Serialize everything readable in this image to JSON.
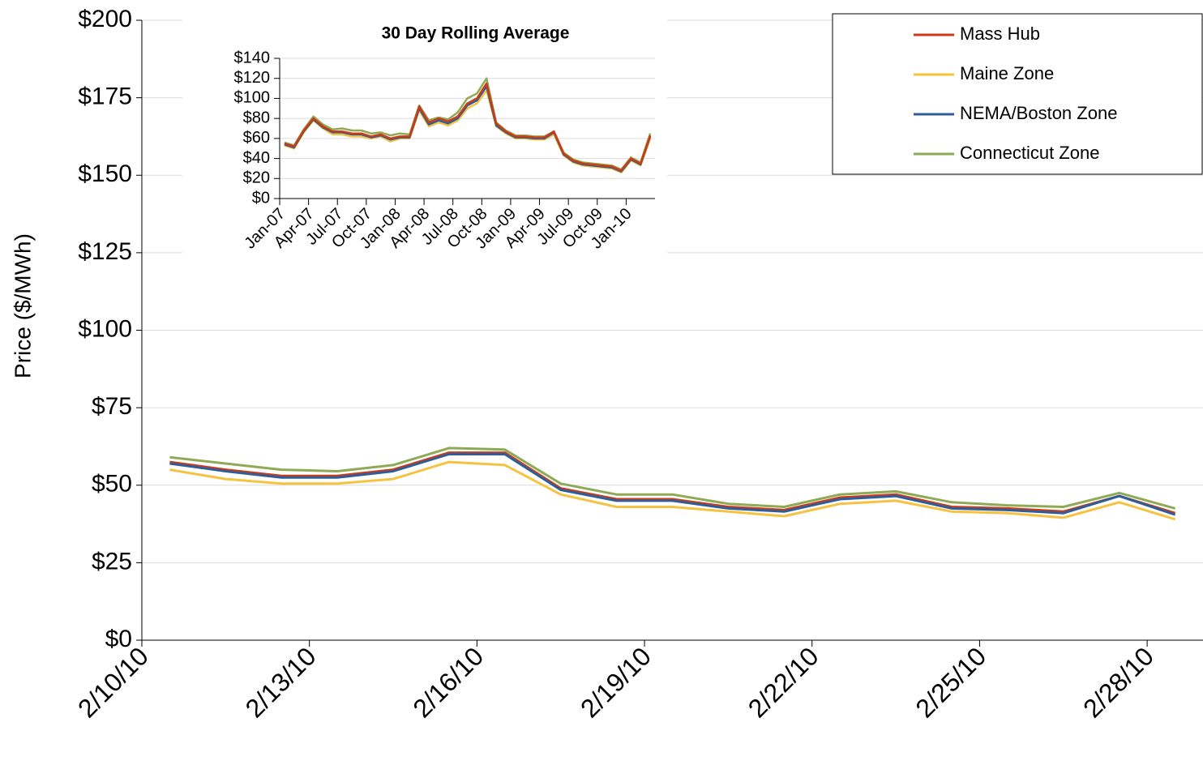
{
  "chart_data": [
    {
      "type": "line",
      "y_label": "Price ($/MWh)",
      "categories": [
        "2/10/10",
        null,
        null,
        "2/13/10",
        null,
        null,
        "2/16/10",
        null,
        null,
        "2/19/10",
        null,
        null,
        "2/22/10",
        null,
        null,
        "2/25/10",
        null,
        null,
        "2/28/10"
      ],
      "series": [
        {
          "name": "Mass Hub",
          "color": "#cc3a16",
          "values": [
            57.5,
            55,
            53,
            53,
            55,
            60.5,
            60.5,
            49,
            45.5,
            45.5,
            43,
            42,
            46,
            47,
            43,
            42.5,
            41.5,
            46.5,
            41
          ]
        },
        {
          "name": "Maine Zone",
          "color": "#f5c242",
          "values": [
            55,
            52,
            50.5,
            50.5,
            52,
            57.5,
            56.5,
            47,
            43,
            43,
            41.5,
            40,
            44,
            45,
            41.5,
            41,
            39.5,
            44.5,
            39
          ]
        },
        {
          "name": "NEMA/Boston Zone",
          "color": "#2e5e9a",
          "values": [
            57,
            54.5,
            52.5,
            52.5,
            54.5,
            60,
            60,
            48.5,
            45,
            45,
            42.5,
            41.5,
            45.5,
            46.5,
            42.5,
            42,
            41,
            46.5,
            40.5
          ]
        },
        {
          "name": "Connecticut Zone",
          "color": "#8faa55",
          "values": [
            59,
            57,
            55,
            54.5,
            56.5,
            62,
            61.5,
            50.5,
            47,
            47,
            44,
            43,
            47,
            48,
            44.5,
            43.5,
            43,
            47.5,
            42.5
          ]
        }
      ],
      "ylim": [
        0,
        200
      ],
      "yticks": [
        {
          "value": 0,
          "label": "$0"
        },
        {
          "value": 25,
          "label": "$25"
        },
        {
          "value": 50,
          "label": "$50"
        },
        {
          "value": 75,
          "label": "$75"
        },
        {
          "value": 100,
          "label": "$100"
        },
        {
          "value": 125,
          "label": "$125"
        },
        {
          "value": 150,
          "label": "$150"
        },
        {
          "value": 175,
          "label": "$175"
        },
        {
          "value": 200,
          "label": "$200"
        }
      ],
      "grid": true,
      "legend": "top-right"
    },
    {
      "type": "line",
      "title": "30 Day Rolling Average",
      "categories": [
        "Jan-07",
        null,
        null,
        "Apr-07",
        null,
        null,
        "Jul-07",
        null,
        null,
        "Oct-07",
        null,
        null,
        "Jan-08",
        null,
        null,
        "Apr-08",
        null,
        null,
        "Jul-08",
        null,
        null,
        "Oct-08",
        null,
        null,
        "Jan-09",
        null,
        null,
        "Apr-09",
        null,
        null,
        "Jul-09",
        null,
        null,
        "Oct-09",
        null,
        null,
        "Jan-10",
        null,
        null
      ],
      "series": [
        {
          "color": "#f5c242",
          "values": [
            53,
            50,
            66,
            78,
            70,
            64,
            64,
            62,
            62,
            60,
            62,
            57,
            60,
            60,
            88,
            72,
            76,
            73,
            78,
            90,
            95,
            108,
            72,
            65,
            60,
            60,
            59,
            59,
            64,
            43,
            36,
            33,
            32,
            31,
            30,
            26,
            38,
            33,
            60
          ]
        },
        {
          "color": "#2e5e9a",
          "values": [
            54,
            51,
            67,
            79,
            71,
            66,
            66,
            64,
            64,
            61,
            63,
            59,
            61,
            61,
            90,
            74,
            78,
            75,
            80,
            93,
            98,
            112,
            73,
            66,
            61,
            61,
            60,
            60,
            66,
            44,
            37,
            34,
            33,
            32,
            31,
            27,
            39,
            34,
            62
          ]
        },
        {
          "color": "#8faa55",
          "values": [
            56,
            53,
            69,
            82,
            74,
            69,
            70,
            68,
            68,
            65,
            66,
            63,
            65,
            64,
            93,
            78,
            81,
            79,
            86,
            100,
            105,
            120,
            76,
            68,
            63,
            63,
            62,
            62,
            67,
            46,
            39,
            36,
            35,
            34,
            33,
            29,
            41,
            36,
            65
          ]
        },
        {
          "color": "#cc3a16",
          "values": [
            55,
            52,
            68,
            80,
            72,
            67,
            67,
            65,
            65,
            62,
            64,
            60,
            62,
            62,
            92,
            76,
            80,
            77,
            82,
            95,
            100,
            115,
            75,
            67,
            62,
            62,
            61,
            61,
            67,
            45,
            38,
            35,
            34,
            33,
            32,
            28,
            40,
            35,
            63
          ]
        }
      ],
      "ylim": [
        0,
        140
      ],
      "yticks": [
        {
          "value": 0,
          "label": "$0"
        },
        {
          "value": 20,
          "label": "$20"
        },
        {
          "value": 40,
          "label": "$40"
        },
        {
          "value": 60,
          "label": "$60"
        },
        {
          "value": 80,
          "label": "$80"
        },
        {
          "value": 100,
          "label": "$100"
        },
        {
          "value": 120,
          "label": "$120"
        },
        {
          "value": 140,
          "label": "$140"
        }
      ],
      "grid": true
    }
  ]
}
